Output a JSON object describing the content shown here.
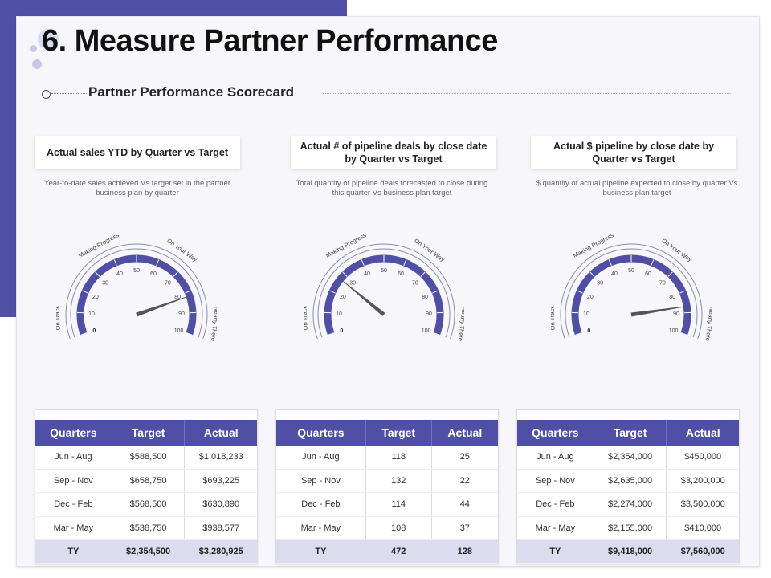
{
  "slide": {
    "title": "6. Measure Partner Performance",
    "subtitle": "Partner Performance Scorecard",
    "accent_color": "#4f4fa6"
  },
  "columns": [
    {
      "header": "Actual sales YTD by Quarter vs Target",
      "description": "Year-to-date sales achieved Vs target set in the partner business plan by quarter",
      "gauge": {
        "labels": [
          "On Track",
          "Making Progress",
          "On Your Way",
          "Nearly There"
        ],
        "ticks": [
          "0",
          "10",
          "20",
          "30",
          "40",
          "50",
          "60",
          "70",
          "80",
          "90",
          "100"
        ],
        "value": 82
      },
      "table": {
        "headers": [
          "Quarters",
          "Target",
          "Actual"
        ],
        "rows": [
          [
            "Jun - Aug",
            "$588,500",
            "$1,018,233"
          ],
          [
            "Sep - Nov",
            "$658,750",
            "$693,225"
          ],
          [
            "Dec - Feb",
            "$568,500",
            "$630,890"
          ],
          [
            "Mar - May",
            "$538,750",
            "$938,577"
          ]
        ],
        "total": [
          "TY",
          "$2,354,500",
          "$3,280,925"
        ]
      }
    },
    {
      "header": "Actual # of pipeline deals by close date by Quarter vs Target",
      "description": "Total quantity of pipeline deals forecasted to close during this quarter Vs business plan target",
      "gauge": {
        "labels": [
          "On Track",
          "Making Progress",
          "On Your Way",
          "Nearly There"
        ],
        "ticks": [
          "0",
          "10",
          "20",
          "30",
          "40",
          "50",
          "60",
          "70",
          "80",
          "90",
          "100"
        ],
        "value": 27
      },
      "table": {
        "headers": [
          "Quarters",
          "Target",
          "Actual"
        ],
        "rows": [
          [
            "Jun - Aug",
            "118",
            "25"
          ],
          [
            "Sep - Nov",
            "132",
            "22"
          ],
          [
            "Dec - Feb",
            "114",
            "44"
          ],
          [
            "Mar - May",
            "108",
            "37"
          ]
        ],
        "total": [
          "TY",
          "472",
          "128"
        ]
      }
    },
    {
      "header": "Actual $ pipeline by close date by Quarter vs Target",
      "description": "$ quantity of actual pipeline expected to close by quarter Vs business plan target",
      "gauge": {
        "labels": [
          "On Track",
          "Making Progress",
          "On Your Way",
          "Nearly There"
        ],
        "ticks": [
          "0",
          "10",
          "20",
          "30",
          "40",
          "50",
          "60",
          "70",
          "80",
          "90",
          "100"
        ],
        "value": 87
      },
      "table": {
        "headers": [
          "Quarters",
          "Target",
          "Actual"
        ],
        "rows": [
          [
            "Jun - Aug",
            "$2,354,000",
            "$450,000"
          ],
          [
            "Sep - Nov",
            "$2,635,000",
            "$3,200,000"
          ],
          [
            "Dec - Feb",
            "$2,274,000",
            "$3,500,000"
          ],
          [
            "Mar - May",
            "$2,155,000",
            "$410,000"
          ]
        ],
        "total": [
          "TY",
          "$9,418,000",
          "$7,560,000"
        ]
      }
    }
  ]
}
